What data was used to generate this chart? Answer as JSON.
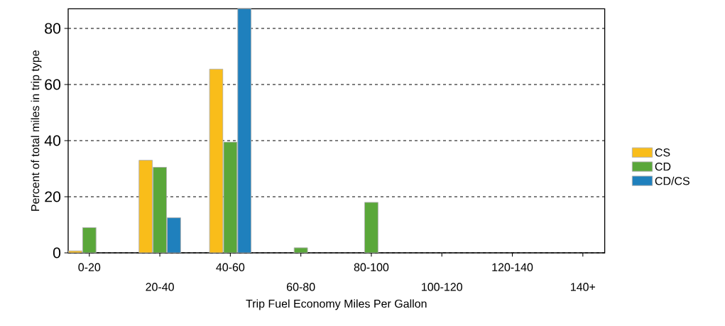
{
  "chart_data": {
    "type": "bar",
    "xlabel": "Trip Fuel Economy Miles Per Gallon",
    "ylabel": "Percent of total miles in trip type",
    "categories": [
      "0-20",
      "20-40",
      "40-60",
      "60-80",
      "80-100",
      "100-120",
      "120-140",
      "140+"
    ],
    "series": [
      {
        "name": "CS",
        "color": "#f9bd1a",
        "values": [
          0.7,
          33,
          65.5,
          null,
          null,
          null,
          null,
          null
        ]
      },
      {
        "name": "CD",
        "color": "#5aa73a",
        "values": [
          9,
          30.5,
          39.5,
          1.8,
          18,
          null,
          null,
          null
        ]
      },
      {
        "name": "CD/CS",
        "color": "#1f80bd",
        "values": [
          null,
          12.5,
          87,
          null,
          null,
          null,
          null,
          null
        ]
      }
    ],
    "ylim": [
      0,
      87
    ],
    "yticks": [
      0,
      20,
      40,
      60,
      80
    ],
    "grid": "y",
    "legend": "right"
  }
}
